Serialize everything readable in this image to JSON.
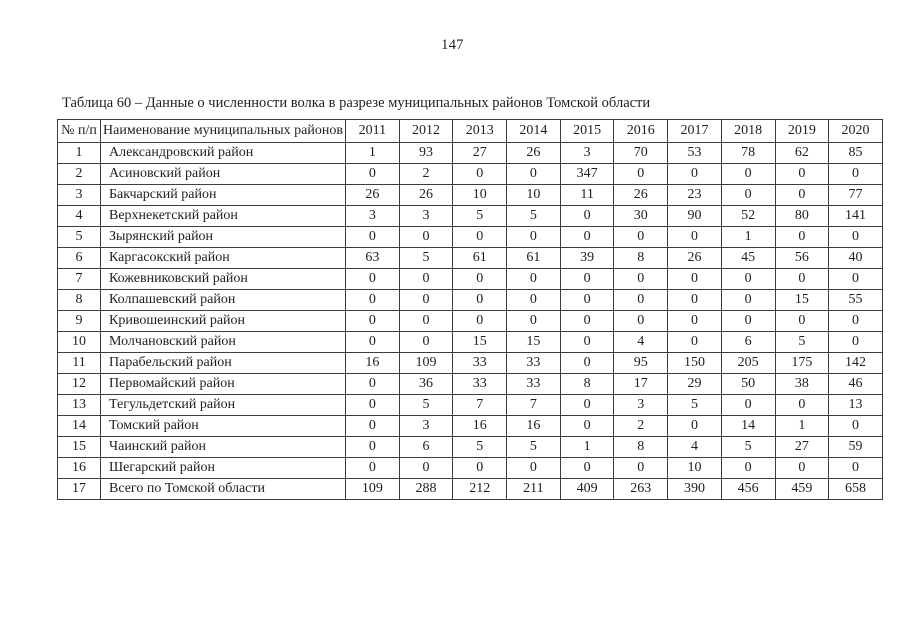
{
  "page": {
    "number": "147"
  },
  "table": {
    "caption": "Таблица 60 – Данные о численности волка в разрезе муниципальных районов Томской области",
    "columns": [
      "№ п/п",
      "Наименование муниципальных районов",
      "2011",
      "2012",
      "2013",
      "2014",
      "2015",
      "2016",
      "2017",
      "2018",
      "2019",
      "2020"
    ],
    "rows": [
      {
        "num": "1",
        "name": "Александровский район",
        "values": [
          "1",
          "93",
          "27",
          "26",
          "3",
          "70",
          "53",
          "78",
          "62",
          "85"
        ]
      },
      {
        "num": "2",
        "name": "Асиновский район",
        "values": [
          "0",
          "2",
          "0",
          "0",
          "347",
          "0",
          "0",
          "0",
          "0",
          "0"
        ]
      },
      {
        "num": "3",
        "name": "Бакчарский район",
        "values": [
          "26",
          "26",
          "10",
          "10",
          "11",
          "26",
          "23",
          "0",
          "0",
          "77"
        ]
      },
      {
        "num": "4",
        "name": "Верхнекетский район",
        "values": [
          "3",
          "3",
          "5",
          "5",
          "0",
          "30",
          "90",
          "52",
          "80",
          "141"
        ]
      },
      {
        "num": "5",
        "name": "Зырянский район",
        "values": [
          "0",
          "0",
          "0",
          "0",
          "0",
          "0",
          "0",
          "1",
          "0",
          "0"
        ]
      },
      {
        "num": "6",
        "name": "Каргасокский район",
        "values": [
          "63",
          "5",
          "61",
          "61",
          "39",
          "8",
          "26",
          "45",
          "56",
          "40"
        ]
      },
      {
        "num": "7",
        "name": "Кожевниковский район",
        "values": [
          "0",
          "0",
          "0",
          "0",
          "0",
          "0",
          "0",
          "0",
          "0",
          "0"
        ]
      },
      {
        "num": "8",
        "name": "Колпашевский район",
        "values": [
          "0",
          "0",
          "0",
          "0",
          "0",
          "0",
          "0",
          "0",
          "15",
          "55"
        ]
      },
      {
        "num": "9",
        "name": "Кривошеинский район",
        "values": [
          "0",
          "0",
          "0",
          "0",
          "0",
          "0",
          "0",
          "0",
          "0",
          "0"
        ]
      },
      {
        "num": "10",
        "name": "Молчановский район",
        "values": [
          "0",
          "0",
          "15",
          "15",
          "0",
          "4",
          "0",
          "6",
          "5",
          "0"
        ]
      },
      {
        "num": "11",
        "name": "Парабельский район",
        "values": [
          "16",
          "109",
          "33",
          "33",
          "0",
          "95",
          "150",
          "205",
          "175",
          "142"
        ]
      },
      {
        "num": "12",
        "name": "Первомайский район",
        "values": [
          "0",
          "36",
          "33",
          "33",
          "8",
          "17",
          "29",
          "50",
          "38",
          "46"
        ]
      },
      {
        "num": "13",
        "name": "Тегульдетский район",
        "values": [
          "0",
          "5",
          "7",
          "7",
          "0",
          "3",
          "5",
          "0",
          "0",
          "13"
        ]
      },
      {
        "num": "14",
        "name": "Томский район",
        "values": [
          "0",
          "3",
          "16",
          "16",
          "0",
          "2",
          "0",
          "14",
          "1",
          "0"
        ]
      },
      {
        "num": "15",
        "name": "Чаинский район",
        "values": [
          "0",
          "6",
          "5",
          "5",
          "1",
          "8",
          "4",
          "5",
          "27",
          "59"
        ]
      },
      {
        "num": "16",
        "name": "Шегарский район",
        "values": [
          "0",
          "0",
          "0",
          "0",
          "0",
          "0",
          "10",
          "0",
          "0",
          "0"
        ]
      },
      {
        "num": "17",
        "name": "Всего по Томской области",
        "values": [
          "109",
          "288",
          "212",
          "211",
          "409",
          "263",
          "390",
          "456",
          "459",
          "658"
        ]
      }
    ]
  }
}
